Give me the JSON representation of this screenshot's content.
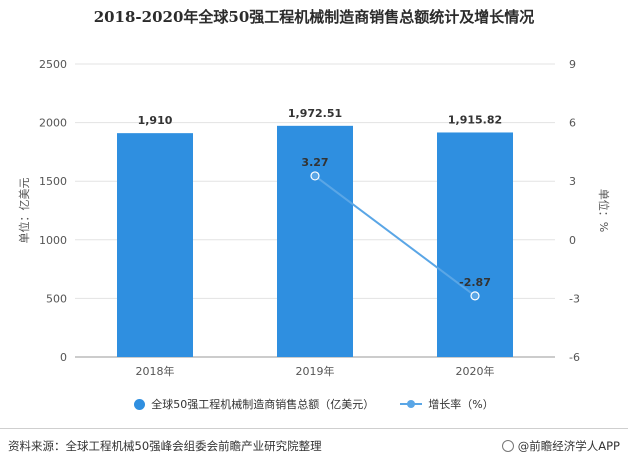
{
  "title": "2018-2020年全球50强工程机械制造商销售总额统计及增长情况",
  "chart_data": {
    "type": "bar",
    "categories": [
      "2018年",
      "2019年",
      "2020年"
    ],
    "series": [
      {
        "name": "全球50强工程机械制造商销售总额（亿美元）",
        "type": "bar",
        "axis": "left",
        "values": [
          1910,
          1972.51,
          1915.82
        ],
        "labels": [
          "1,910",
          "1,972.51",
          "1,915.82"
        ],
        "color": "#2f8fe0"
      },
      {
        "name": "增长率（%）",
        "type": "line",
        "axis": "right",
        "values": [
          null,
          3.27,
          -2.87
        ],
        "labels": [
          "",
          "3.27",
          "-2.87"
        ],
        "color": "#5aa6e6"
      }
    ],
    "ylabel": "单位：亿美元",
    "y2label": "单位：%",
    "ylim": [
      0,
      2500
    ],
    "yticks": [
      0,
      500,
      1000,
      1500,
      2000,
      2500
    ],
    "y2lim": [
      -6,
      9
    ],
    "y2ticks": [
      -6,
      -3,
      0,
      3,
      6,
      9
    ],
    "grid": true,
    "legend": "bottom"
  },
  "footer": {
    "source": "资料来源：全球工程机械50强峰会组委会前瞻产业研究院整理",
    "brand": "@前瞻经济学人APP"
  }
}
